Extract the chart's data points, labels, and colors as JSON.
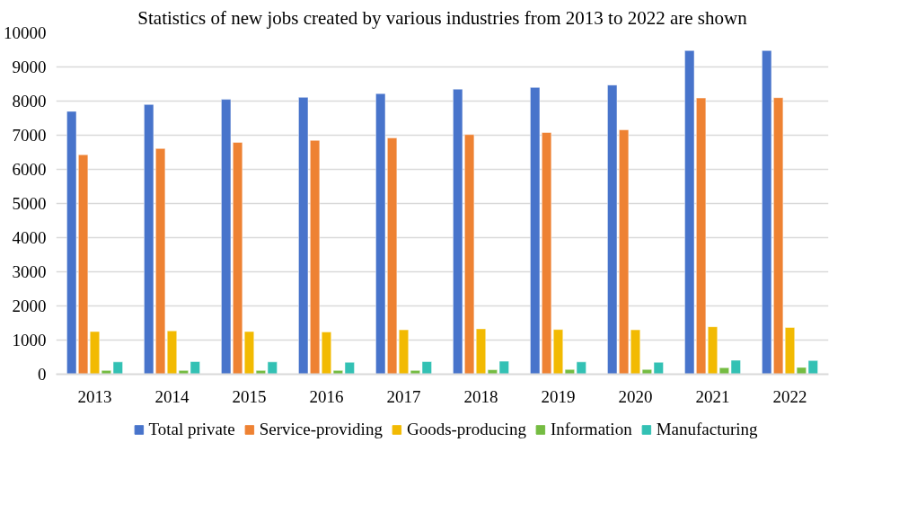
{
  "chart_data": {
    "type": "bar",
    "title": "Statistics of new jobs created by various industries from 2013 to 2022 are shown",
    "categories": [
      "2013",
      "2014",
      "2015",
      "2016",
      "2017",
      "2018",
      "2019",
      "2020",
      "2021",
      "2022"
    ],
    "series": [
      {
        "name": "Total private",
        "color": "#4874cb",
        "values": [
          7700,
          7900,
          8050,
          8110,
          8220,
          8350,
          8400,
          8470,
          9480,
          9480
        ]
      },
      {
        "name": "Service-providing",
        "color": "#ee8233",
        "values": [
          6430,
          6610,
          6790,
          6850,
          6920,
          7020,
          7080,
          7160,
          8090,
          8100
        ]
      },
      {
        "name": "Goods-producing",
        "color": "#f2ba02",
        "values": [
          1250,
          1270,
          1250,
          1240,
          1300,
          1330,
          1310,
          1300,
          1390,
          1370
        ]
      },
      {
        "name": "Information",
        "color": "#75bc42",
        "values": [
          110,
          110,
          110,
          110,
          110,
          130,
          140,
          140,
          190,
          200
        ]
      },
      {
        "name": "Manufacturing",
        "color": "#33c1b4",
        "values": [
          360,
          370,
          360,
          350,
          370,
          380,
          360,
          350,
          410,
          400
        ]
      }
    ],
    "ylim": [
      0,
      10000
    ],
    "yticks": [
      0,
      1000,
      2000,
      3000,
      4000,
      5000,
      6000,
      7000,
      8000,
      9000,
      10000
    ],
    "grid": "y",
    "legend": "bottom"
  }
}
